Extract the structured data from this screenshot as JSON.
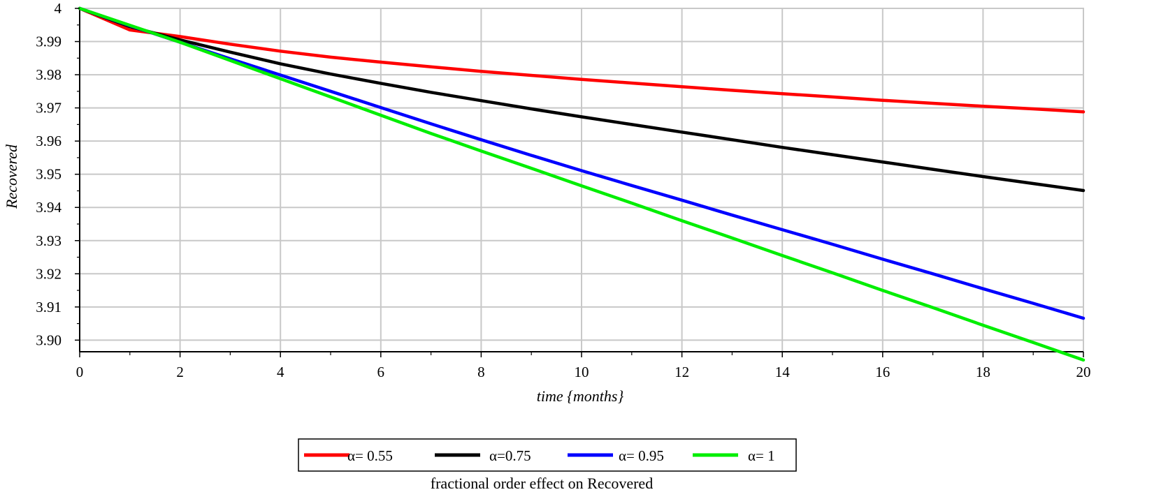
{
  "chart_data": {
    "type": "line",
    "title": "",
    "caption": "fractional order effect on Recovered",
    "xlabel": "time {months}",
    "ylabel": "Recovered",
    "xlim": [
      0,
      20
    ],
    "ylim": [
      3.8965,
      4.0
    ],
    "grid": true,
    "legend_position": "bottom",
    "x_ticks": [
      "0",
      "2",
      "4",
      "6",
      "8",
      "10",
      "12",
      "14",
      "16",
      "18",
      "20"
    ],
    "y_ticks": [
      "4",
      "3.99",
      "3.98",
      "3.97",
      "3.96",
      "3.95",
      "3.94",
      "3.93",
      "3.92",
      "3.91",
      "3.90"
    ],
    "x_tick_values": [
      0,
      2,
      4,
      6,
      8,
      10,
      12,
      14,
      16,
      18,
      20
    ],
    "y_tick_values": [
      4.0,
      3.99,
      3.98,
      3.97,
      3.96,
      3.95,
      3.94,
      3.93,
      3.92,
      3.91,
      3.9
    ],
    "x": [
      0,
      1,
      2,
      3,
      4,
      5,
      6,
      7,
      8,
      9,
      10,
      11,
      12,
      13,
      14,
      15,
      16,
      17,
      18,
      19,
      20
    ],
    "series": [
      {
        "name": "α= 0.55",
        "color": "#ff0000",
        "values": [
          4.0,
          3.9935,
          3.9915,
          3.9892,
          3.9871,
          3.9853,
          3.9838,
          3.9824,
          3.981,
          3.9798,
          3.9786,
          3.9775,
          3.9764,
          3.9753,
          3.9743,
          3.9733,
          3.9723,
          3.9714,
          3.9705,
          3.9697,
          3.9688
        ]
      },
      {
        "name": "α=0.75",
        "color": "#000000",
        "values": [
          4.0,
          3.9945,
          3.9905,
          3.9868,
          3.9833,
          3.9802,
          3.9774,
          3.9747,
          3.9722,
          3.9697,
          3.9673,
          3.965,
          3.9627,
          3.9604,
          3.9581,
          3.9559,
          3.9537,
          3.9515,
          3.9493,
          3.9472,
          3.9451
        ]
      },
      {
        "name": "α= 0.95",
        "color": "#0000ff",
        "values": [
          4.0,
          3.9948,
          3.9898,
          3.9848,
          3.9799,
          3.975,
          3.9701,
          3.9652,
          3.9604,
          3.9557,
          3.9511,
          3.9466,
          3.9422,
          3.9377,
          3.9333,
          3.9289,
          3.9244,
          3.92,
          3.9155,
          3.9111,
          3.9066
        ]
      },
      {
        "name": "α= 1",
        "color": "#00ee00",
        "values": [
          4.0,
          3.9949,
          3.9898,
          3.9843,
          3.9788,
          3.9733,
          3.9678,
          3.9623,
          3.957,
          3.9518,
          3.9465,
          3.9413,
          3.936,
          3.9308,
          3.9255,
          3.9203,
          3.915,
          3.9098,
          3.9045,
          3.8993,
          3.894
        ]
      }
    ]
  }
}
